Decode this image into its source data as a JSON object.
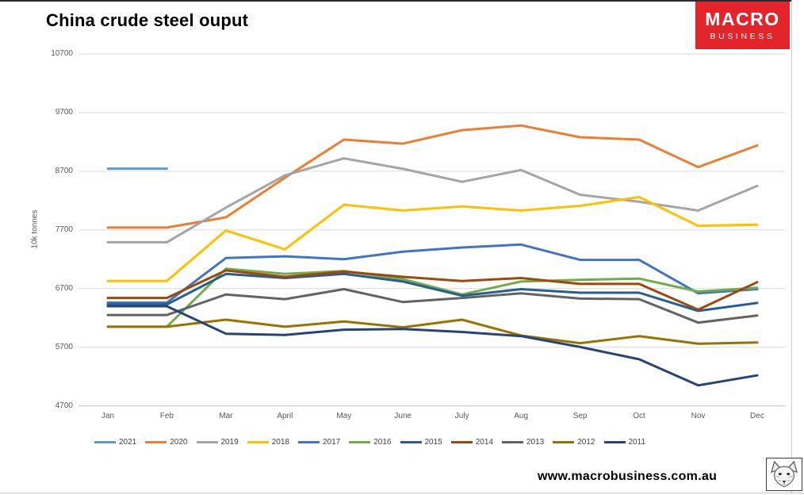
{
  "page": {
    "title": "China crude steel ouput",
    "footer_url": "www.macrobusiness.com.au"
  },
  "logo": {
    "line1": "MACRO",
    "line2": "BUSINESS",
    "bg_color": "#E3242B",
    "text_color": "#FFFFFF"
  },
  "icons": {
    "fox_logo": "fox-sketch-stamp"
  },
  "colors": {
    "gridline": "#d9d9d9",
    "axis_line": "#bfbfbf",
    "tick_text": "#595959",
    "legend_text": "#404040",
    "title_text": "#000000",
    "window_edge": "#c9c9c9"
  },
  "chart_data": {
    "type": "line",
    "title": "China crude steel ouput",
    "xlabel": "",
    "ylabel": "10k tonnes",
    "ylim": [
      4700,
      10700
    ],
    "yticks": [
      10700,
      9700,
      8700,
      7700,
      6700,
      5700,
      4700
    ],
    "grid": "horizontal",
    "legend_position": "bottom",
    "categories": [
      "Jan",
      "Feb",
      "Mar",
      "April",
      "May",
      "June",
      "July",
      "Aug",
      "Sep",
      "Oct",
      "Nov",
      "Dec"
    ],
    "series": [
      {
        "name": "2021",
        "color": "#5B9BD5",
        "values": [
          8745,
          8745,
          null,
          null,
          null,
          null,
          null,
          null,
          null,
          null,
          null,
          null
        ]
      },
      {
        "name": "2020",
        "color": "#ED7D31",
        "values": [
          7740,
          7740,
          7915,
          8590,
          9240,
          9170,
          9400,
          9480,
          9280,
          9240,
          8770,
          9140
        ]
      },
      {
        "name": "2019",
        "color": "#A5A5A5",
        "values": [
          7490,
          7490,
          8080,
          8630,
          8920,
          8740,
          8520,
          8720,
          8300,
          8180,
          8030,
          8450
        ]
      },
      {
        "name": "2018",
        "color": "#FFC000",
        "values": [
          6830,
          6830,
          7690,
          7370,
          8130,
          8030,
          8100,
          8030,
          8110,
          8260,
          7770,
          7790
        ]
      },
      {
        "name": "2017",
        "color": "#4472C4",
        "values": [
          6460,
          6460,
          7220,
          7250,
          7200,
          7330,
          7400,
          7450,
          7190,
          7190,
          6620,
          6690
        ]
      },
      {
        "name": "2016",
        "color": "#70AD47",
        "values": [
          6050,
          6050,
          7040,
          6950,
          7000,
          6860,
          6600,
          6820,
          6850,
          6870,
          6650,
          6715
        ]
      },
      {
        "name": "2015",
        "color": "#255E91",
        "values": [
          6430,
          6430,
          6950,
          6880,
          6950,
          6820,
          6580,
          6690,
          6630,
          6630,
          6320,
          6455
        ]
      },
      {
        "name": "2014",
        "color": "#9E480E",
        "values": [
          6540,
          6540,
          7010,
          6900,
          6990,
          6900,
          6830,
          6880,
          6780,
          6780,
          6340,
          6810
        ]
      },
      {
        "name": "2013",
        "color": "#636363",
        "values": [
          6250,
          6250,
          6600,
          6520,
          6690,
          6470,
          6540,
          6620,
          6530,
          6520,
          6120,
          6240
        ]
      },
      {
        "name": "2012",
        "color": "#997300",
        "values": [
          6050,
          6050,
          6170,
          6050,
          6140,
          6040,
          6170,
          5900,
          5770,
          5890,
          5760,
          5780
        ]
      },
      {
        "name": "2011",
        "color": "#264478",
        "values": [
          6400,
          6400,
          5930,
          5910,
          6000,
          6010,
          5960,
          5890,
          5705,
          5495,
          5050,
          5220
        ]
      }
    ]
  }
}
